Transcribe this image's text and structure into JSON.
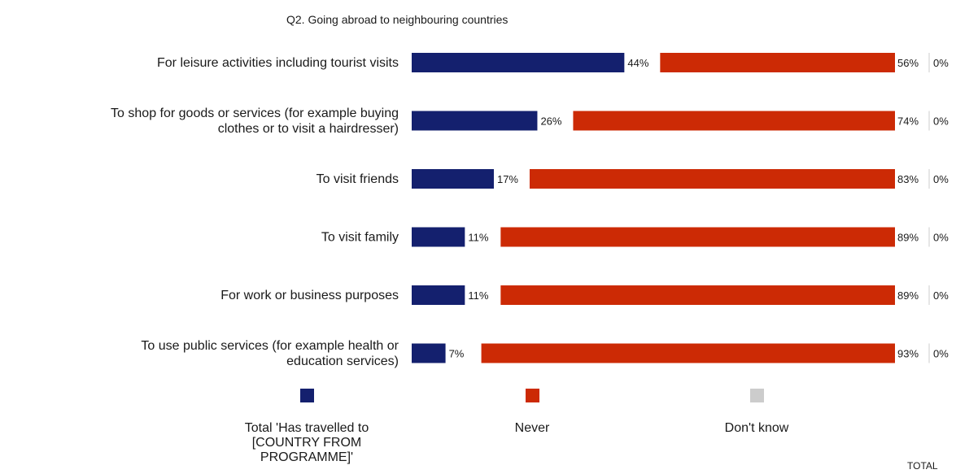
{
  "chart_data": {
    "type": "bar",
    "stacked": true,
    "orientation": "horizontal",
    "title": "Q2. Going abroad to neighbouring countries",
    "footnote": "TOTAL",
    "categories": [
      "For leisure activities including tourist visits",
      "To shop for goods or services (for example buying clothes or to visit a hairdresser)",
      "To visit friends",
      "To visit family",
      "For work or business purposes",
      "To use public services (for example health or education services)"
    ],
    "series": [
      {
        "name": "Total 'Has travelled to [COUNTRY FROM PROGRAMME]'",
        "color": "#14206e",
        "values": [
          44,
          26,
          17,
          11,
          11,
          7
        ]
      },
      {
        "name": "Never",
        "color": "#cc2a05",
        "values": [
          56,
          74,
          83,
          89,
          89,
          93
        ]
      },
      {
        "name": "Don't know",
        "color": "#cccccc",
        "values": [
          0,
          0,
          0,
          0,
          0,
          0
        ]
      }
    ],
    "value_suffix": "%",
    "legend_position": "bottom",
    "grid": false
  }
}
